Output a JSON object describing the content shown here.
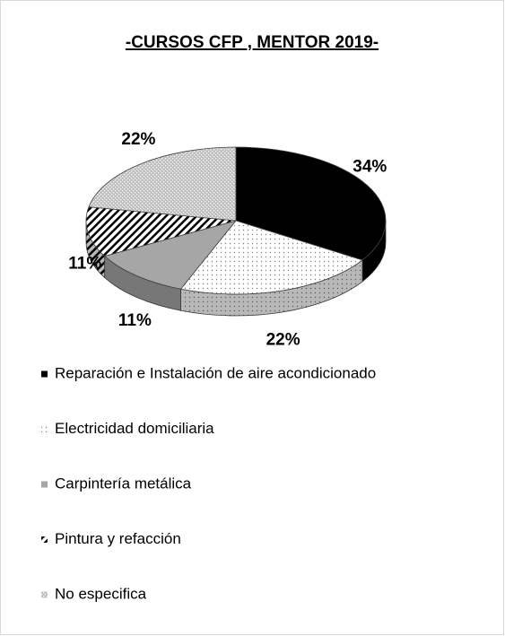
{
  "chart_data": {
    "type": "pie",
    "title": "-CURSOS CFP , MENTOR 2019-",
    "categories": [
      "Reparación e Instalación de aire acondicionado",
      "Electricidad domiciliaria",
      "Carpintería metálica",
      "Pintura y refacción",
      "No especifica"
    ],
    "values": [
      34,
      22,
      11,
      11,
      22
    ],
    "value_labels": [
      "34%",
      "22%",
      "11%",
      "11%",
      "22%"
    ],
    "colors": [
      "#000000",
      "#ffffff",
      "#a6a6a6",
      "#ffffff",
      "#bfbfbf"
    ],
    "patterns": [
      "solid",
      "dots",
      "solid",
      "stripes",
      "checks"
    ],
    "legend": "bottom"
  }
}
